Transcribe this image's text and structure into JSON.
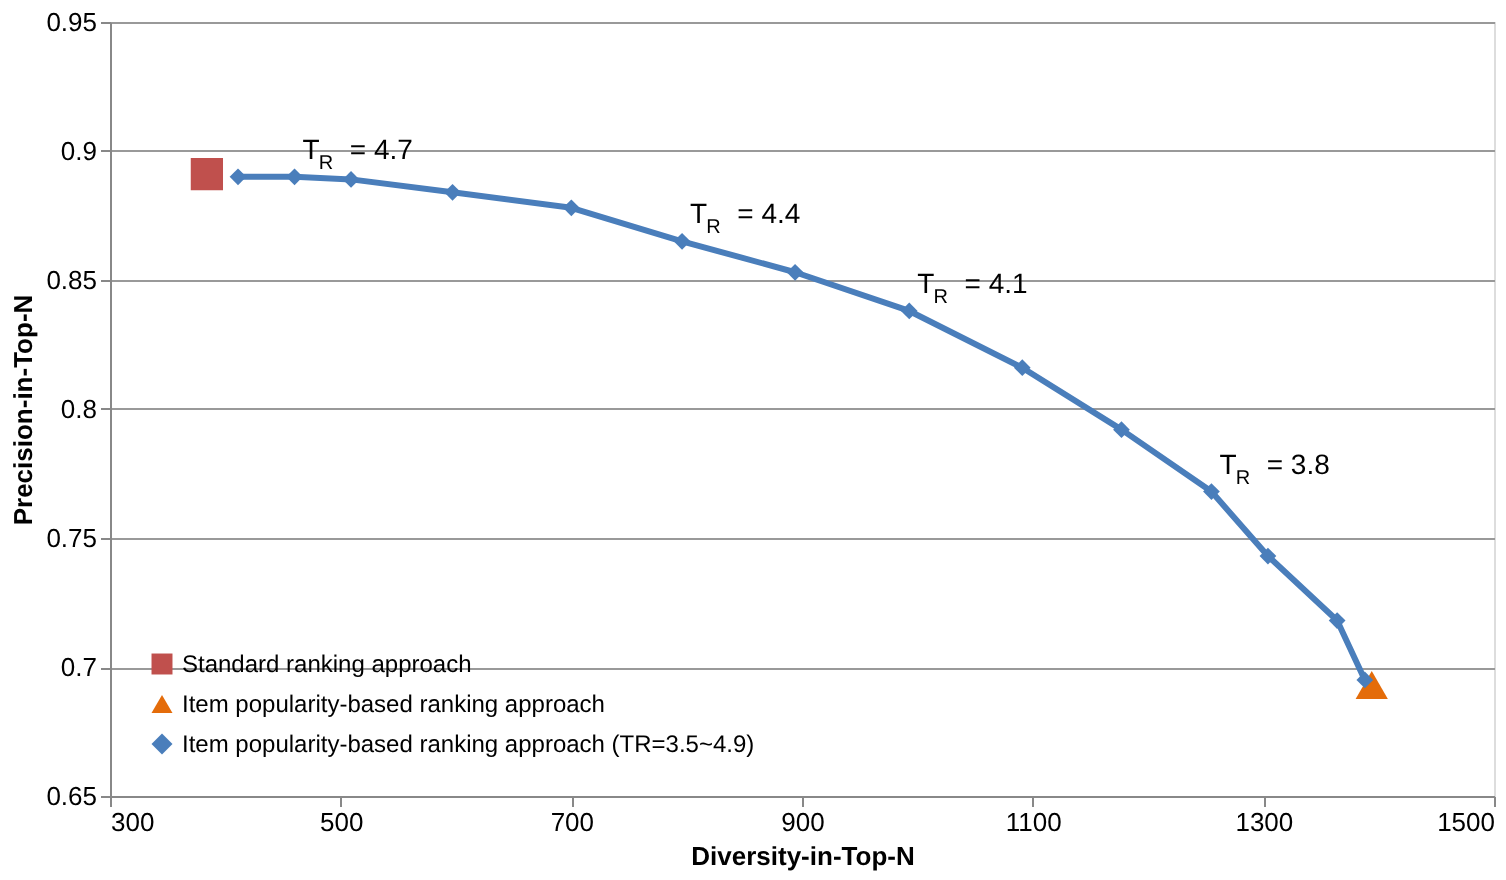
{
  "chart_data": {
    "type": "scatter",
    "xlabel": "Diversity-in-Top-N",
    "ylabel": "Precision-in-Top-N",
    "xlim": [
      300,
      1500
    ],
    "xticks": [
      300,
      500,
      700,
      900,
      1100,
      1300,
      1500
    ],
    "ylim": [
      0.65,
      0.95
    ],
    "yticks": [
      0.65,
      0.7,
      0.75,
      0.8,
      0.85,
      0.9,
      0.95
    ],
    "grid": "y",
    "legend": "bottom left",
    "series": [
      {
        "name": "Standard ranking approach",
        "type": "scatter",
        "marker": "square",
        "color": "#c0504d",
        "x": [
          384
        ],
        "values": [
          0.891
        ]
      },
      {
        "name": "Item popularity-based ranking approach",
        "type": "scatter",
        "marker": "triangle",
        "color": "#e46c0a",
        "x": [
          1394
        ],
        "values": [
          0.693
        ]
      },
      {
        "name": "Item popularity-based ranking approach (TR=3.5~4.9)",
        "type": "line",
        "marker": "diamond",
        "color": "#4a7ebb",
        "x": [
          411,
          460,
          509,
          597,
          700,
          796,
          894,
          993,
          1091,
          1177,
          1255,
          1304,
          1364,
          1388
        ],
        "values": [
          0.89,
          0.89,
          0.889,
          0.884,
          0.878,
          0.865,
          0.853,
          0.838,
          0.816,
          0.792,
          0.768,
          0.743,
          0.718,
          0.695
        ]
      }
    ],
    "annotations": [
      {
        "text": "T$_{R}$ = 4.7",
        "x": 460,
        "y": 0.89
      },
      {
        "text": "T$_{R}$ = 4.4",
        "x": 796,
        "y": 0.865
      },
      {
        "text": "T$_{R}$ = 4.1",
        "x": 993,
        "y": 0.838
      },
      {
        "text": "T$_{R}$ = 3.8",
        "x": 1255,
        "y": 0.768
      }
    ]
  }
}
